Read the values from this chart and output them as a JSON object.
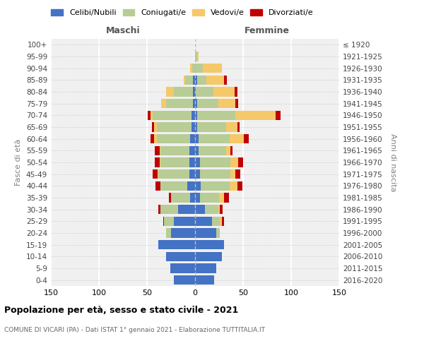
{
  "age_groups": [
    "0-4",
    "5-9",
    "10-14",
    "15-19",
    "20-24",
    "25-29",
    "30-34",
    "35-39",
    "40-44",
    "45-49",
    "50-54",
    "55-59",
    "60-64",
    "65-69",
    "70-74",
    "75-79",
    "80-84",
    "85-89",
    "90-94",
    "95-99",
    "100+"
  ],
  "birth_years": [
    "2016-2020",
    "2011-2015",
    "2006-2010",
    "2001-2005",
    "1996-2000",
    "1991-1995",
    "1986-1990",
    "1981-1985",
    "1976-1980",
    "1971-1975",
    "1966-1970",
    "1961-1965",
    "1956-1960",
    "1951-1955",
    "1946-1950",
    "1941-1945",
    "1936-1940",
    "1931-1935",
    "1926-1930",
    "1921-1925",
    "≤ 1920"
  ],
  "maschi": {
    "celibi": [
      22,
      26,
      30,
      38,
      25,
      22,
      18,
      5,
      8,
      6,
      6,
      6,
      5,
      4,
      4,
      2,
      2,
      2,
      0,
      0,
      0
    ],
    "coniugati": [
      0,
      0,
      0,
      0,
      5,
      10,
      18,
      20,
      28,
      32,
      30,
      30,
      35,
      36,
      40,
      28,
      20,
      8,
      3,
      0,
      0
    ],
    "vedovi": [
      0,
      0,
      0,
      0,
      0,
      0,
      0,
      0,
      0,
      1,
      1,
      1,
      3,
      3,
      2,
      5,
      8,
      2,
      2,
      0,
      0
    ],
    "divorziati": [
      0,
      0,
      0,
      0,
      0,
      1,
      2,
      2,
      5,
      5,
      5,
      5,
      3,
      2,
      3,
      0,
      0,
      0,
      0,
      0,
      0
    ]
  },
  "femmine": {
    "nubili": [
      20,
      22,
      28,
      30,
      22,
      18,
      10,
      5,
      6,
      5,
      5,
      4,
      4,
      2,
      2,
      2,
      1,
      2,
      0,
      0,
      0
    ],
    "coniugate": [
      0,
      0,
      0,
      0,
      4,
      8,
      14,
      20,
      30,
      32,
      32,
      28,
      32,
      30,
      40,
      22,
      18,
      10,
      8,
      2,
      0
    ],
    "vedove": [
      0,
      0,
      0,
      0,
      0,
      2,
      2,
      5,
      8,
      5,
      8,
      5,
      15,
      12,
      42,
      18,
      22,
      18,
      20,
      2,
      0
    ],
    "divorziate": [
      0,
      0,
      0,
      0,
      0,
      2,
      3,
      5,
      5,
      5,
      5,
      2,
      5,
      2,
      5,
      3,
      3,
      3,
      0,
      0,
      0
    ]
  },
  "colors": {
    "celibi": "#4472C4",
    "coniugati": "#B8CC96",
    "vedovi": "#F5C96A",
    "divorziati": "#C00000"
  },
  "legend_labels": [
    "Celibi/Nubili",
    "Coniugati/e",
    "Vedovi/e",
    "Divorziati/e"
  ],
  "title_main": "Popolazione per età, sesso e stato civile - 2021",
  "title_sub": "COMUNE DI VICARI (PA) - Dati ISTAT 1° gennaio 2021 - Elaborazione TUTTITALIA.IT",
  "label_maschi": "Maschi",
  "label_femmine": "Femmine",
  "ylabel_left": "Fasce di età",
  "ylabel_right": "Anni di nascita",
  "xlim": 150,
  "bg_color": "#f0f0f0"
}
